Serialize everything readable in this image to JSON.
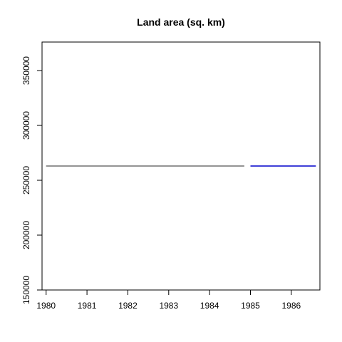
{
  "chart_data": {
    "type": "line",
    "title": "Land area (sq. km)",
    "xlabel": "",
    "ylabel": "",
    "xlim": [
      1979.9,
      1986.7
    ],
    "ylim": [
      150000,
      376000
    ],
    "x_ticks": [
      1980,
      1981,
      1982,
      1983,
      1984,
      1985,
      1986
    ],
    "x_tick_labels": [
      "1980",
      "1981",
      "1982",
      "1983",
      "1984",
      "1985",
      "1986"
    ],
    "y_ticks": [
      150000,
      200000,
      250000,
      300000,
      350000
    ],
    "y_tick_labels": [
      "150000",
      "200000",
      "250000",
      "300000",
      "350000"
    ],
    "grid": false,
    "legend": "none",
    "series": [
      {
        "x": [
          1980,
          1984.85
        ],
        "values": [
          263000,
          263000
        ],
        "color": "#555555"
      },
      {
        "x": [
          1985,
          1986.6
        ],
        "values": [
          263000,
          263000
        ],
        "color": "#0000cc"
      }
    ]
  }
}
